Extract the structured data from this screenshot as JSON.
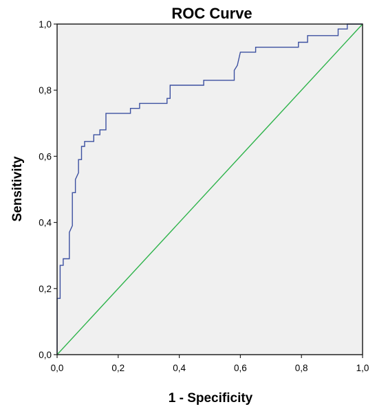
{
  "chart_data": {
    "type": "line",
    "title": "ROC Curve",
    "xlabel": "1 - Specificity",
    "ylabel": "Sensitivity",
    "xlim": [
      0,
      1
    ],
    "ylim": [
      0,
      1
    ],
    "x_ticks": [
      "0,0",
      "0,2",
      "0,4",
      "0,6",
      "0,8",
      "1,0"
    ],
    "y_ticks": [
      "0,0",
      "0,2",
      "0,4",
      "0,6",
      "0,8",
      "1,0"
    ],
    "x_tick_values": [
      0,
      0.2,
      0.4,
      0.6,
      0.8,
      1.0
    ],
    "y_tick_values": [
      0,
      0.2,
      0.4,
      0.6,
      0.8,
      1.0
    ],
    "grid": false,
    "legend": "none",
    "plot_background": "#f0f0f0",
    "series": [
      {
        "color": "#3b4fa0",
        "points": [
          [
            0.0,
            0.0
          ],
          [
            0.0,
            0.17
          ],
          [
            0.01,
            0.17
          ],
          [
            0.01,
            0.27
          ],
          [
            0.02,
            0.27
          ],
          [
            0.02,
            0.29
          ],
          [
            0.04,
            0.29
          ],
          [
            0.04,
            0.37
          ],
          [
            0.05,
            0.39
          ],
          [
            0.05,
            0.49
          ],
          [
            0.06,
            0.49
          ],
          [
            0.06,
            0.53
          ],
          [
            0.07,
            0.55
          ],
          [
            0.07,
            0.59
          ],
          [
            0.08,
            0.59
          ],
          [
            0.08,
            0.63
          ],
          [
            0.09,
            0.63
          ],
          [
            0.09,
            0.645
          ],
          [
            0.12,
            0.645
          ],
          [
            0.12,
            0.665
          ],
          [
            0.14,
            0.665
          ],
          [
            0.14,
            0.68
          ],
          [
            0.16,
            0.68
          ],
          [
            0.16,
            0.73
          ],
          [
            0.24,
            0.73
          ],
          [
            0.24,
            0.745
          ],
          [
            0.27,
            0.745
          ],
          [
            0.27,
            0.76
          ],
          [
            0.36,
            0.76
          ],
          [
            0.36,
            0.775
          ],
          [
            0.37,
            0.775
          ],
          [
            0.37,
            0.815
          ],
          [
            0.48,
            0.815
          ],
          [
            0.48,
            0.83
          ],
          [
            0.58,
            0.83
          ],
          [
            0.58,
            0.86
          ],
          [
            0.59,
            0.875
          ],
          [
            0.6,
            0.915
          ],
          [
            0.65,
            0.915
          ],
          [
            0.65,
            0.93
          ],
          [
            0.79,
            0.93
          ],
          [
            0.79,
            0.945
          ],
          [
            0.82,
            0.945
          ],
          [
            0.82,
            0.965
          ],
          [
            0.92,
            0.965
          ],
          [
            0.92,
            0.985
          ],
          [
            0.95,
            0.985
          ],
          [
            0.95,
            1.0
          ],
          [
            1.0,
            1.0
          ]
        ]
      },
      {
        "color": "#2db34a",
        "points": [
          [
            0,
            0
          ],
          [
            1,
            1
          ]
        ]
      }
    ]
  }
}
